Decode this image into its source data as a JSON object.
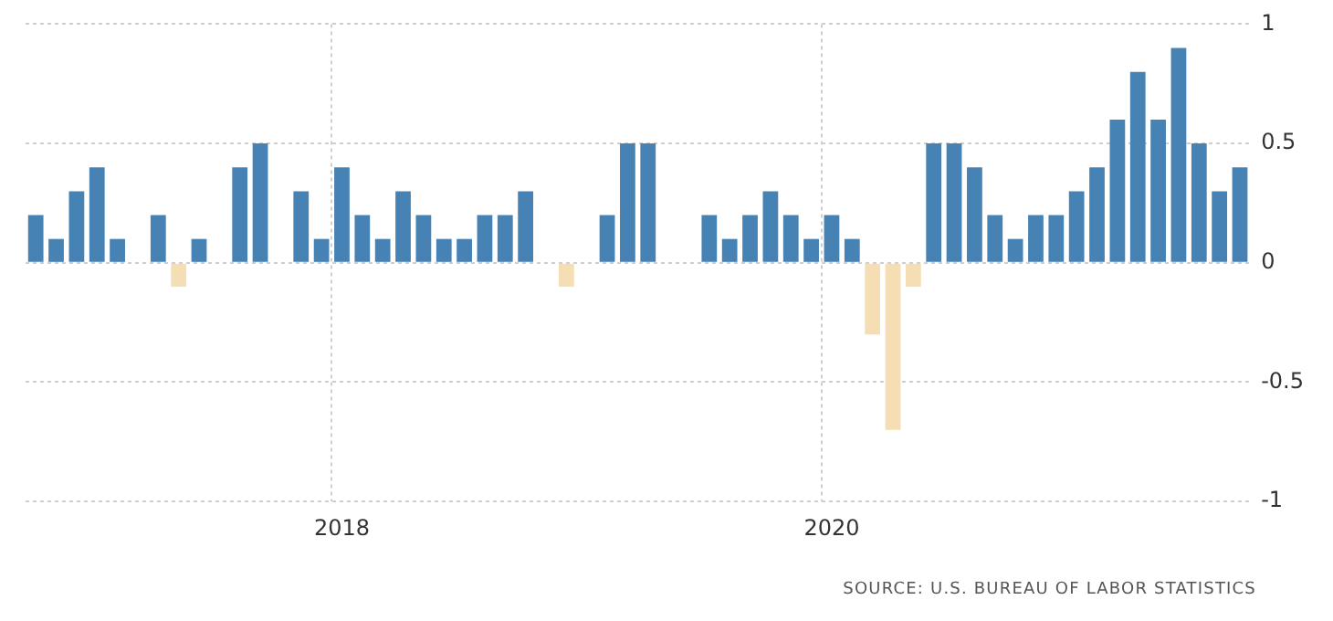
{
  "chart_data": {
    "type": "bar",
    "categories": [
      null,
      null,
      null,
      null,
      null,
      null,
      null,
      null,
      null,
      null,
      null,
      null,
      null,
      null,
      null,
      "2018",
      null,
      null,
      null,
      null,
      null,
      null,
      null,
      null,
      null,
      null,
      null,
      null,
      null,
      null,
      null,
      null,
      null,
      null,
      null,
      null,
      null,
      null,
      null,
      "2020",
      null,
      null,
      null,
      null,
      null,
      null,
      null,
      null,
      null,
      null,
      null,
      null,
      null,
      null,
      null,
      null,
      null,
      null,
      null,
      null
    ],
    "values": [
      0.2,
      0.1,
      0.3,
      0.4,
      0.1,
      0,
      0.2,
      -0.1,
      0.1,
      0,
      0.4,
      0.5,
      0,
      0.3,
      0.1,
      0.4,
      0.2,
      0.1,
      0.3,
      0.2,
      0.1,
      0.1,
      0.2,
      0.2,
      0.3,
      0,
      -0.1,
      0,
      0.2,
      0.5,
      0.5,
      0,
      0,
      0.2,
      0.1,
      0.2,
      0.3,
      0.2,
      0.1,
      0.2,
      0.1,
      -0.3,
      -0.7,
      -0.1,
      0.5,
      0.5,
      0.4,
      0.2,
      0.1,
      0.2,
      0.2,
      0.3,
      0.4,
      0.6,
      0.8,
      0.6,
      0.9,
      0.5,
      0.3,
      0.4
    ],
    "colors": [
      "#4682b4",
      "#4682b4",
      "#4682b4",
      "#4682b4",
      "#4682b4",
      "#4682b4",
      "#4682b4",
      "#f5deb3",
      "#4682b4",
      "#4682b4",
      "#4682b4",
      "#4682b4",
      "#4682b4",
      "#4682b4",
      "#4682b4",
      "#4682b4",
      "#4682b4",
      "#4682b4",
      "#4682b4",
      "#4682b4",
      "#4682b4",
      "#4682b4",
      "#4682b4",
      "#4682b4",
      "#4682b4",
      "#4682b4",
      "#f5deb3",
      "#4682b4",
      "#4682b4",
      "#4682b4",
      "#4682b4",
      "#4682b4",
      "#4682b4",
      "#4682b4",
      "#4682b4",
      "#4682b4",
      "#4682b4",
      "#4682b4",
      "#4682b4",
      "#4682b4",
      "#4682b4",
      "#f5deb3",
      "#f5deb3",
      "#f5deb3",
      "#4682b4",
      "#4682b4",
      "#4682b4",
      "#4682b4",
      "#4682b4",
      "#4682b4",
      "#4682b4",
      "#4682b4",
      "#4682b4",
      "#4682b4",
      "#4682b4",
      "#4682b4",
      "#4682b4",
      "#4682b4",
      "#4682b4",
      "#4682b4"
    ],
    "ylim": [
      -1,
      1
    ],
    "yticks": [
      -1,
      -0.5,
      0,
      0.5,
      1
    ],
    "grid": true,
    "legend": false,
    "annotations": [
      "SOURCE: U.S. BUREAU OF LABOR STATISTICS"
    ]
  }
}
